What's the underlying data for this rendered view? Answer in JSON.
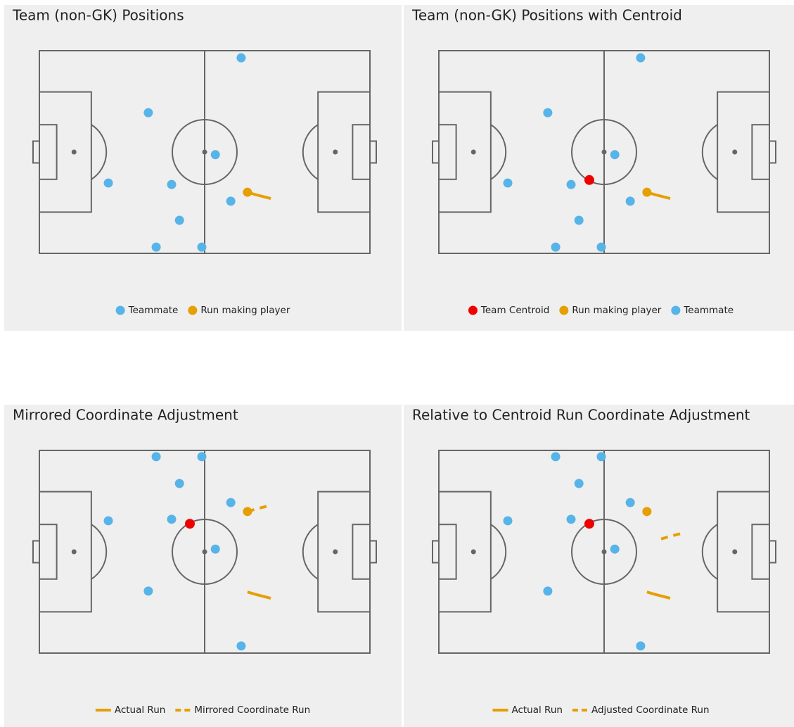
{
  "chart_data": [
    {
      "type": "scatter",
      "title": "Team (non-GK) Positions",
      "xlim": [
        0,
        105
      ],
      "ylim": [
        0,
        68
      ],
      "series": [
        {
          "name": "Teammate",
          "color": "#56b4e9",
          "mark": "point",
          "x": [
            64.1,
            34.6,
            55.9,
            21.9,
            42.0,
            60.8,
            44.5,
            37.1,
            51.6
          ],
          "y": [
            65.6,
            47.2,
            33.1,
            23.6,
            23.1,
            17.5,
            11.1,
            2.1,
            2.1
          ]
        },
        {
          "name": "Run making player",
          "color": "#e69f00",
          "mark": "point",
          "x": [
            66.1
          ],
          "y": [
            20.5
          ]
        },
        {
          "color": "#e69f00",
          "mark": "line",
          "x": [
            66.1,
            69.0,
            73.5
          ],
          "y": [
            20.5,
            19.6,
            18.4
          ]
        }
      ]
    },
    {
      "type": "scatter",
      "title": "Team (non-GK) Positions with Centroid",
      "xlim": [
        0,
        105
      ],
      "ylim": [
        0,
        68
      ],
      "series": [
        {
          "name": "Team Centroid",
          "color": "#ee0000",
          "mark": "point",
          "x": [
            47.8
          ],
          "y": [
            24.6
          ]
        },
        {
          "name": "Run making player",
          "color": "#e69f00",
          "mark": "point",
          "x": [
            66.1
          ],
          "y": [
            20.5
          ]
        },
        {
          "name": "Teammate",
          "color": "#56b4e9",
          "mark": "point",
          "x": [
            64.1,
            34.6,
            55.9,
            21.9,
            42.0,
            60.8,
            44.5,
            37.1,
            51.6
          ],
          "y": [
            65.6,
            47.2,
            33.1,
            23.6,
            23.1,
            17.5,
            11.1,
            2.1,
            2.1
          ]
        },
        {
          "color": "#e69f00",
          "mark": "line",
          "x": [
            66.1,
            69.0,
            73.5
          ],
          "y": [
            20.5,
            19.6,
            18.4
          ]
        }
      ]
    },
    {
      "type": "scatter",
      "title": "Mirrored Coordinate Adjustment",
      "xlim": [
        0,
        105
      ],
      "ylim": [
        0,
        68
      ],
      "series": [
        {
          "name": "Actual Run",
          "color": "#e69f00",
          "mark": "line",
          "x": [
            66.1,
            69.0,
            73.5
          ],
          "y": [
            20.5,
            19.6,
            18.4
          ]
        },
        {
          "name": "Mirrored Coordinate Run",
          "color": "#e69f00",
          "mark": "dashed",
          "x": [
            66.1,
            69.0,
            73.5
          ],
          "y": [
            47.5,
            48.4,
            49.6
          ]
        },
        {
          "color": "#56b4e9",
          "mark": "point",
          "x": [
            64.1,
            34.6,
            55.9,
            21.9,
            42.0,
            60.8,
            44.5,
            37.1,
            51.6
          ],
          "y": [
            2.4,
            20.8,
            34.9,
            44.4,
            44.9,
            50.5,
            56.9,
            65.9,
            65.9
          ]
        },
        {
          "color": "#ee0000",
          "mark": "point",
          "x": [
            47.8
          ],
          "y": [
            43.4
          ]
        },
        {
          "color": "#e69f00",
          "mark": "point",
          "x": [
            66.1
          ],
          "y": [
            47.5
          ]
        }
      ]
    },
    {
      "type": "scatter",
      "title": "Relative to Centroid Run Coordinate Adjustment",
      "xlim": [
        0,
        105
      ],
      "ylim": [
        0,
        68
      ],
      "series": [
        {
          "name": "Actual Run",
          "color": "#e69f00",
          "mark": "line",
          "x": [
            66.1,
            69.0,
            73.5
          ],
          "y": [
            20.5,
            19.6,
            18.4
          ]
        },
        {
          "name": "Adjusted Coordinate Run",
          "color": "#e69f00",
          "mark": "dashed",
          "x": [
            70.6,
            73.5,
            78.0
          ],
          "y": [
            38.3,
            39.2,
            40.4
          ]
        },
        {
          "color": "#56b4e9",
          "mark": "point",
          "x": [
            64.1,
            34.6,
            55.9,
            21.9,
            42.0,
            60.8,
            44.5,
            37.1,
            51.6
          ],
          "y": [
            2.4,
            20.8,
            34.9,
            44.4,
            44.9,
            50.5,
            56.9,
            65.9,
            65.9
          ]
        },
        {
          "color": "#ee0000",
          "mark": "point",
          "x": [
            47.8
          ],
          "y": [
            43.4
          ]
        },
        {
          "color": "#e69f00",
          "mark": "point",
          "x": [
            66.1
          ],
          "y": [
            47.5
          ]
        }
      ]
    }
  ]
}
